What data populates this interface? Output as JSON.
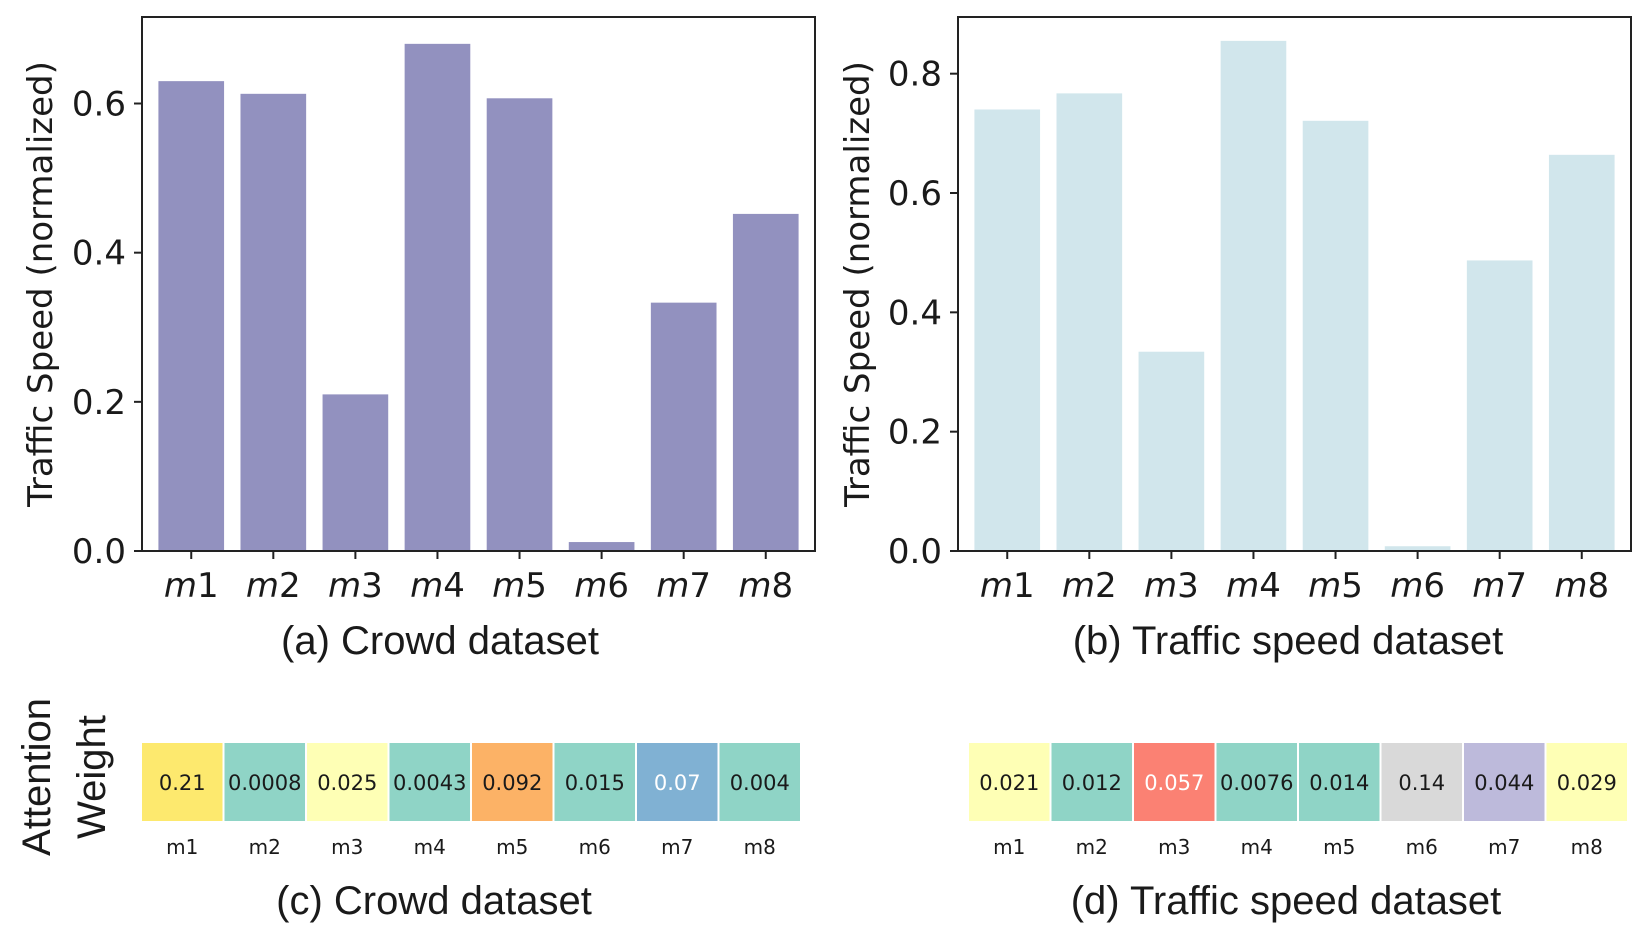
{
  "chart_data": [
    {
      "type": "bar",
      "id": "a",
      "caption": "(a) Crowd dataset",
      "ylabel": "Traffic Speed (normalized)",
      "xlabel": "",
      "categories": [
        "m1",
        "m2",
        "m3",
        "m4",
        "m5",
        "m6",
        "m7",
        "m8"
      ],
      "values": [
        0.63,
        0.613,
        0.21,
        0.68,
        0.607,
        0.012,
        0.333,
        0.452
      ],
      "ylim": [
        0,
        0.716
      ],
      "yticks": [
        0.0,
        0.2,
        0.4,
        0.6
      ],
      "ytick_labels": [
        "0.0",
        "0.2",
        "0.4",
        "0.6"
      ],
      "bar_color": "#9291bf"
    },
    {
      "type": "bar",
      "id": "b",
      "caption": "(b) Traffic speed dataset",
      "ylabel": "Traffic Speed (normalized)",
      "xlabel": "",
      "categories": [
        "m1",
        "m2",
        "m3",
        "m4",
        "m5",
        "m6",
        "m7",
        "m8"
      ],
      "values": [
        0.74,
        0.767,
        0.334,
        0.855,
        0.721,
        0.008,
        0.487,
        0.664
      ],
      "ylim": [
        0,
        0.895
      ],
      "yticks": [
        0.0,
        0.2,
        0.4,
        0.6,
        0.8
      ],
      "ytick_labels": [
        "0.0",
        "0.2",
        "0.4",
        "0.6",
        "0.8"
      ],
      "bar_color": "#d1e6ec"
    },
    {
      "type": "heatmap",
      "id": "c",
      "caption": "(c) Crowd dataset",
      "categories": [
        "m1",
        "m2",
        "m3",
        "m4",
        "m5",
        "m6",
        "m7",
        "m8"
      ],
      "values": [
        "0.21",
        "0.0008",
        "0.025",
        "0.0043",
        "0.092",
        "0.015",
        "0.07",
        "0.004"
      ],
      "cell_colors": [
        "#fde96e",
        "#8fd4c6",
        "#feffb5",
        "#8fd4c6",
        "#fcb266",
        "#8fd4c6",
        "#80b1d3",
        "#8fd4c6"
      ],
      "text_colors": [
        "#1a1a1a",
        "#1a1a1a",
        "#1a1a1a",
        "#1a1a1a",
        "#1a1a1a",
        "#1a1a1a",
        "#ffffff",
        "#1a1a1a"
      ]
    },
    {
      "type": "heatmap",
      "id": "d",
      "caption": "(d) Traffic speed dataset",
      "categories": [
        "m1",
        "m2",
        "m3",
        "m4",
        "m5",
        "m6",
        "m7",
        "m8"
      ],
      "values": [
        "0.021",
        "0.012",
        "0.057",
        "0.0076",
        "0.014",
        "0.14",
        "0.044",
        "0.029"
      ],
      "cell_colors": [
        "#feffb5",
        "#8fd4c6",
        "#fb8173",
        "#8fd4c6",
        "#8fd4c6",
        "#d9d9d9",
        "#bdbadb",
        "#feffb5"
      ],
      "text_colors": [
        "#1a1a1a",
        "#1a1a1a",
        "#ffffff",
        "#1a1a1a",
        "#1a1a1a",
        "#1a1a1a",
        "#1a1a1a",
        "#1a1a1a"
      ]
    }
  ],
  "attention_label": {
    "line1": "Attention",
    "line2": "Weight"
  }
}
